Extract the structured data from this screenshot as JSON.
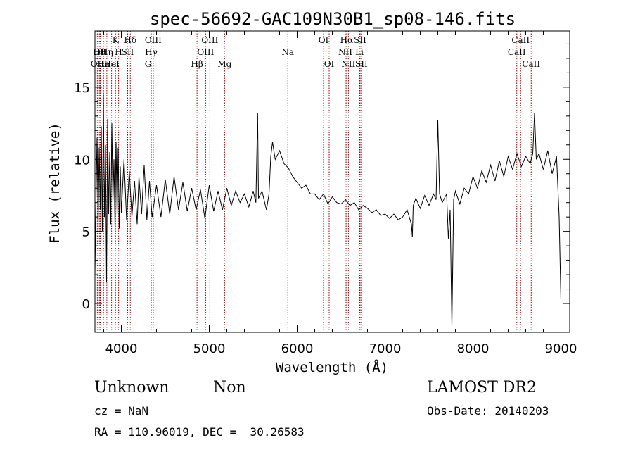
{
  "chart_data": {
    "type": "line",
    "title": "spec-56692-GAC109N30B1_sp08-146.fits",
    "xlabel": "Wavelength (Å)",
    "ylabel": "Flux (relative)",
    "xlim": [
      3700,
      9100
    ],
    "ylim": [
      -2.0,
      18.9
    ],
    "xticks": [
      4000,
      5000,
      6000,
      7000,
      8000,
      9000
    ],
    "yticks": [
      0,
      5,
      10,
      15
    ],
    "line_color": "#000000",
    "marker_color": "#a00000",
    "series": [
      {
        "values": [
          [
            3700,
            2.0
          ],
          [
            3712,
            7.2
          ],
          [
            3724,
            11.5
          ],
          [
            3736,
            5.5
          ],
          [
            3748,
            10.8
          ],
          [
            3760,
            6.5
          ],
          [
            3772,
            12.3
          ],
          [
            3784,
            5.0
          ],
          [
            3796,
            14.5
          ],
          [
            3808,
            6.0
          ],
          [
            3820,
            11.0
          ],
          [
            3832,
            1.5
          ],
          [
            3844,
            12.8
          ],
          [
            3856,
            6.2
          ],
          [
            3868,
            10.5
          ],
          [
            3880,
            5.5
          ],
          [
            3892,
            12.5
          ],
          [
            3904,
            7.0
          ],
          [
            3916,
            10.0
          ],
          [
            3928,
            5.3
          ],
          [
            3940,
            11.2
          ],
          [
            3952,
            6.0
          ],
          [
            3964,
            10.8
          ],
          [
            3976,
            5.2
          ],
          [
            3988,
            9.5
          ],
          [
            4000,
            6.3
          ],
          [
            4030,
            10.0
          ],
          [
            4060,
            5.8
          ],
          [
            4090,
            9.2
          ],
          [
            4120,
            6.0
          ],
          [
            4150,
            8.5
          ],
          [
            4180,
            5.5
          ],
          [
            4200,
            8.8
          ],
          [
            4230,
            6.2
          ],
          [
            4260,
            9.6
          ],
          [
            4290,
            5.8
          ],
          [
            4320,
            8.5
          ],
          [
            4350,
            6.0
          ],
          [
            4400,
            8.2
          ],
          [
            4450,
            6.0
          ],
          [
            4500,
            8.6
          ],
          [
            4550,
            6.2
          ],
          [
            4600,
            8.8
          ],
          [
            4650,
            6.5
          ],
          [
            4700,
            8.4
          ],
          [
            4750,
            6.4
          ],
          [
            4800,
            8.0
          ],
          [
            4850,
            6.5
          ],
          [
            4900,
            7.9
          ],
          [
            4950,
            5.9
          ],
          [
            5000,
            8.2
          ],
          [
            5050,
            6.4
          ],
          [
            5100,
            7.8
          ],
          [
            5150,
            6.5
          ],
          [
            5200,
            8.0
          ],
          [
            5250,
            6.8
          ],
          [
            5300,
            7.8
          ],
          [
            5350,
            7.0
          ],
          [
            5400,
            7.6
          ],
          [
            5450,
            6.7
          ],
          [
            5500,
            7.8
          ],
          [
            5530,
            7.0
          ],
          [
            5550,
            13.2
          ],
          [
            5560,
            7.3
          ],
          [
            5600,
            7.8
          ],
          [
            5650,
            6.5
          ],
          [
            5680,
            7.6
          ],
          [
            5700,
            10.2
          ],
          [
            5720,
            11.2
          ],
          [
            5750,
            10.0
          ],
          [
            5800,
            10.6
          ],
          [
            5850,
            9.7
          ],
          [
            5900,
            9.4
          ],
          [
            5950,
            8.8
          ],
          [
            6000,
            8.4
          ],
          [
            6050,
            8.0
          ],
          [
            6100,
            8.2
          ],
          [
            6150,
            7.6
          ],
          [
            6200,
            7.6
          ],
          [
            6250,
            7.2
          ],
          [
            6300,
            7.6
          ],
          [
            6350,
            6.9
          ],
          [
            6400,
            7.4
          ],
          [
            6450,
            7.0
          ],
          [
            6500,
            6.9
          ],
          [
            6550,
            7.2
          ],
          [
            6600,
            6.8
          ],
          [
            6650,
            7.0
          ],
          [
            6700,
            6.5
          ],
          [
            6750,
            6.8
          ],
          [
            6800,
            6.6
          ],
          [
            6850,
            6.3
          ],
          [
            6900,
            6.5
          ],
          [
            6950,
            6.1
          ],
          [
            7000,
            6.2
          ],
          [
            7050,
            5.9
          ],
          [
            7100,
            6.2
          ],
          [
            7150,
            5.8
          ],
          [
            7200,
            6.0
          ],
          [
            7250,
            6.5
          ],
          [
            7300,
            5.5
          ],
          [
            7310,
            4.6
          ],
          [
            7320,
            6.8
          ],
          [
            7350,
            7.3
          ],
          [
            7400,
            6.6
          ],
          [
            7450,
            7.5
          ],
          [
            7500,
            6.8
          ],
          [
            7550,
            7.6
          ],
          [
            7580,
            7.2
          ],
          [
            7600,
            12.7
          ],
          [
            7620,
            7.6
          ],
          [
            7650,
            7.0
          ],
          [
            7700,
            7.6
          ],
          [
            7720,
            4.5
          ],
          [
            7740,
            6.5
          ],
          [
            7760,
            -1.6
          ],
          [
            7780,
            7.2
          ],
          [
            7800,
            7.8
          ],
          [
            7850,
            6.9
          ],
          [
            7900,
            8.0
          ],
          [
            7950,
            7.6
          ],
          [
            8000,
            8.8
          ],
          [
            8050,
            8.0
          ],
          [
            8100,
            9.2
          ],
          [
            8150,
            8.4
          ],
          [
            8200,
            9.6
          ],
          [
            8250,
            8.5
          ],
          [
            8300,
            9.9
          ],
          [
            8350,
            8.8
          ],
          [
            8400,
            10.2
          ],
          [
            8450,
            9.3
          ],
          [
            8500,
            10.4
          ],
          [
            8550,
            9.5
          ],
          [
            8600,
            10.2
          ],
          [
            8650,
            9.7
          ],
          [
            8680,
            10.4
          ],
          [
            8700,
            13.2
          ],
          [
            8720,
            10.0
          ],
          [
            8750,
            10.4
          ],
          [
            8800,
            9.3
          ],
          [
            8850,
            10.6
          ],
          [
            8900,
            9.0
          ],
          [
            8950,
            10.2
          ],
          [
            8980,
            6.0
          ],
          [
            9000,
            0.2
          ]
        ]
      }
    ],
    "line_markers": [
      {
        "wave": 3727,
        "row": 2,
        "label": "OII"
      },
      {
        "wave": 3750,
        "row": 1,
        "label": "Hθ"
      },
      {
        "wave": 3760,
        "row": 1,
        "label": "OII"
      },
      {
        "wave": 3798,
        "row": 2,
        "label": "He"
      },
      {
        "wave": 3835,
        "row": 1,
        "label": "Hη"
      },
      {
        "wave": 3889,
        "row": 2,
        "label": "HeI"
      },
      {
        "wave": 3934,
        "row": 0,
        "label": "K"
      },
      {
        "wave": 3969,
        "row": 1,
        "label": "H"
      },
      {
        "wave": 4072,
        "row": 1,
        "label": "SII"
      },
      {
        "wave": 4102,
        "row": 0,
        "label": "Hδ"
      },
      {
        "wave": 4304,
        "row": 2,
        "label": "G"
      },
      {
        "wave": 4340,
        "row": 1,
        "label": "Hγ"
      },
      {
        "wave": 4363,
        "row": 0,
        "label": "OIII"
      },
      {
        "wave": 4861,
        "row": 2,
        "label": "Hβ"
      },
      {
        "wave": 4959,
        "row": 1,
        "label": "OIII"
      },
      {
        "wave": 5007,
        "row": 0,
        "label": "OIII"
      },
      {
        "wave": 5175,
        "row": 2,
        "label": "Mg"
      },
      {
        "wave": 5894,
        "row": 1,
        "label": "Na"
      },
      {
        "wave": 6300,
        "row": 0,
        "label": "OI"
      },
      {
        "wave": 6364,
        "row": 2,
        "label": "OI"
      },
      {
        "wave": 6548,
        "row": 1,
        "label": "NII"
      },
      {
        "wave": 6563,
        "row": 0,
        "label": "Hα"
      },
      {
        "wave": 6583,
        "row": 2,
        "label": "NII"
      },
      {
        "wave": 6708,
        "row": 1,
        "label": "Li"
      },
      {
        "wave": 6716,
        "row": 0,
        "label": "SII"
      },
      {
        "wave": 6731,
        "row": 2,
        "label": "SII"
      },
      {
        "wave": 8498,
        "row": 1,
        "label": "CaII"
      },
      {
        "wave": 8542,
        "row": 0,
        "label": "CaII"
      },
      {
        "wave": 8662,
        "row": 2,
        "label": "CaII"
      }
    ]
  },
  "info": {
    "class": "Unknown",
    "subclass": "Non",
    "cz": "cz = NaN",
    "coords": "RA = 110.96019, DEC =  30.26583",
    "survey": "LAMOST DR2",
    "obs_date": "Obs-Date: 20140203"
  }
}
